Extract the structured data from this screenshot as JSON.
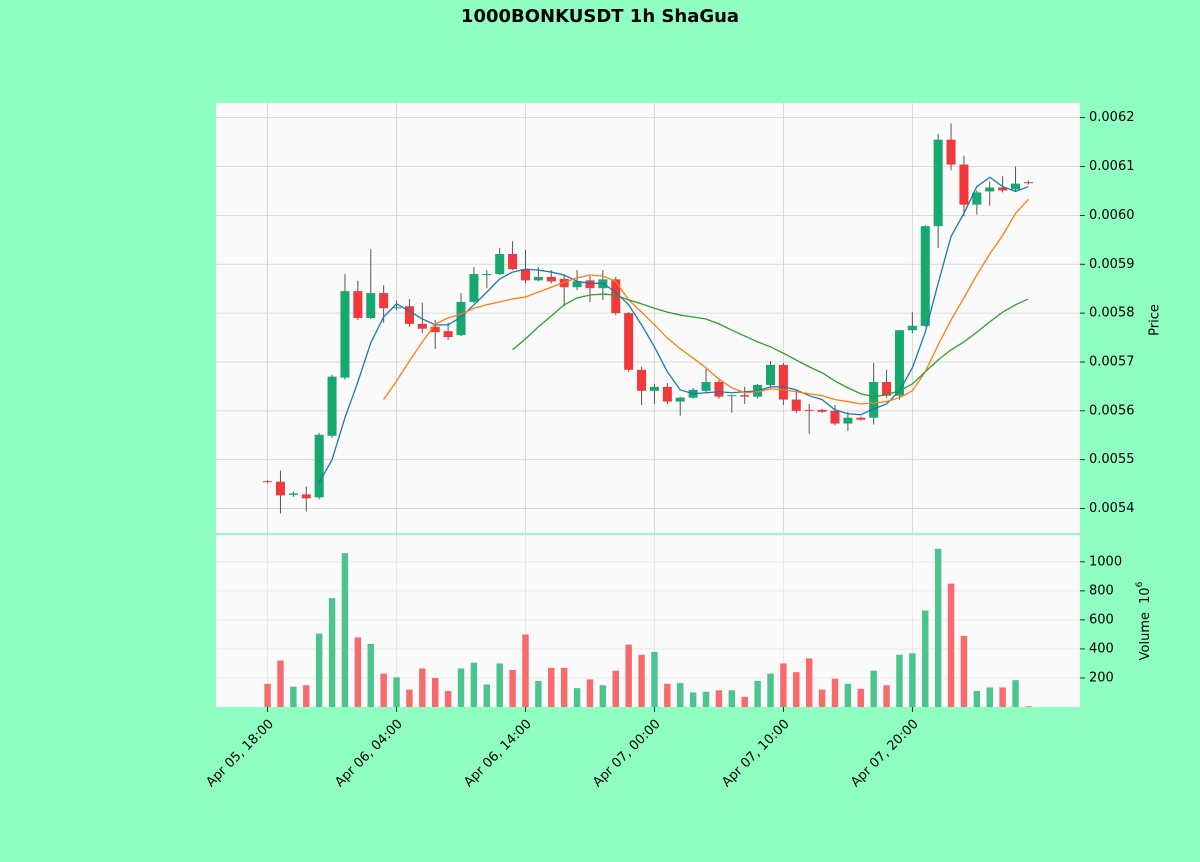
{
  "chart_data": {
    "type": "candlestick",
    "title": "1000BONKUSDT 1h ShaGua",
    "ylabel": "Price",
    "volume_label": "Volume",
    "volume_exponent_base": "10",
    "volume_exponent": "6",
    "up_color": "#16a86e",
    "down_color": "#f2383b",
    "volume_up_color": "#4cc490",
    "volume_down_color": "#f86b6d",
    "grid": true,
    "xlim": [
      -4,
      63
    ],
    "xticks": [
      {
        "value": 0,
        "label": "Apr 05, 18:00"
      },
      {
        "value": 10,
        "label": "Apr 06, 04:00"
      },
      {
        "value": 20,
        "label": "Apr 06, 14:00"
      },
      {
        "value": 30,
        "label": "Apr 07, 00:00"
      },
      {
        "value": 40,
        "label": "Apr 07, 10:00"
      },
      {
        "value": 50,
        "label": "Apr 07, 20:00"
      }
    ],
    "ylim": [
      0.00535,
      0.00623
    ],
    "yticks": [
      0.0054,
      0.0055,
      0.0056,
      0.0057,
      0.0058,
      0.0059,
      {
        "value": 0.006,
        "label": "0.0060"
      },
      0.0061,
      0.0062
    ],
    "volume_ylim": [
      0,
      1185
    ],
    "volume_yticks": [
      200,
      400,
      600,
      800,
      1000
    ],
    "open": [
      0.005456,
      0.005455,
      0.005428,
      0.005429,
      0.005423,
      0.005549,
      0.005668,
      0.005845,
      0.00579,
      0.005841,
      0.00581,
      0.005814,
      0.005778,
      0.005772,
      0.005763,
      0.005755,
      0.005823,
      0.005878,
      0.00588,
      0.005921,
      0.00589,
      0.005867,
      0.005874,
      0.00587,
      0.005853,
      0.005867,
      0.005851,
      0.005869,
      0.0058,
      0.005684,
      0.005641,
      0.005649,
      0.005619,
      0.005627,
      0.005641,
      0.005659,
      0.00563,
      0.005632,
      0.005629,
      0.005653,
      0.005694,
      0.005623,
      0.005602,
      0.005602,
      0.0056,
      0.005574,
      0.005586,
      0.005586,
      0.005659,
      0.005631,
      0.005765,
      0.005774,
      0.005978,
      0.006155,
      0.006104,
      0.006022,
      0.006049,
      0.006057,
      0.006053,
      0.006068
    ],
    "high": [
      0.005458,
      0.005478,
      0.005435,
      0.005445,
      0.005555,
      0.005674,
      0.00588,
      0.005866,
      0.005931,
      0.005857,
      0.005826,
      0.005829,
      0.005821,
      0.005786,
      0.00578,
      0.005841,
      0.005894,
      0.005888,
      0.005933,
      0.005947,
      0.005929,
      0.005894,
      0.005888,
      0.005878,
      0.005888,
      0.005876,
      0.005888,
      0.005874,
      0.005802,
      0.00569,
      0.005655,
      0.005657,
      0.005629,
      0.005647,
      0.005686,
      0.005663,
      0.005633,
      0.005649,
      0.005655,
      0.005702,
      0.005698,
      0.005643,
      0.005614,
      0.005604,
      0.005612,
      0.005598,
      0.005588,
      0.005698,
      0.005684,
      0.005765,
      0.005802,
      0.00598,
      0.006167,
      0.006188,
      0.006122,
      0.006051,
      0.006069,
      0.00608,
      0.0061,
      0.006071
    ],
    "low": [
      0.005452,
      0.00539,
      0.005424,
      0.005394,
      0.005419,
      0.005545,
      0.005664,
      0.005786,
      0.005788,
      0.00578,
      0.005806,
      0.005772,
      0.005759,
      0.005727,
      0.005745,
      0.005753,
      0.005821,
      0.005851,
      0.005878,
      0.005888,
      0.005861,
      0.005865,
      0.005861,
      0.005814,
      0.005847,
      0.005823,
      0.005827,
      0.005796,
      0.00568,
      0.005612,
      0.005614,
      0.005614,
      0.00559,
      0.005625,
      0.005637,
      0.005625,
      0.005596,
      0.005614,
      0.005625,
      0.005647,
      0.005612,
      0.005596,
      0.005553,
      0.005596,
      0.00557,
      0.005559,
      0.00558,
      0.005572,
      0.005627,
      0.005623,
      0.005759,
      0.005772,
      0.005933,
      0.006092,
      0.005998,
      0.006002,
      0.00602,
      0.006047,
      0.006049,
      0.006063
    ],
    "close": [
      0.005454,
      0.005427,
      0.005431,
      0.005421,
      0.005551,
      0.00567,
      0.005845,
      0.00579,
      0.005841,
      0.00581,
      0.005812,
      0.005778,
      0.005768,
      0.005761,
      0.005751,
      0.005823,
      0.00588,
      0.00588,
      0.005921,
      0.00589,
      0.005867,
      0.005874,
      0.005865,
      0.005853,
      0.005865,
      0.005851,
      0.005869,
      0.0058,
      0.005684,
      0.005641,
      0.005649,
      0.005619,
      0.005627,
      0.005643,
      0.005659,
      0.005629,
      0.005632,
      0.005629,
      0.005653,
      0.005694,
      0.005623,
      0.0056,
      0.0056,
      0.005598,
      0.005574,
      0.005586,
      0.005582,
      0.005659,
      0.005631,
      0.005765,
      0.005774,
      0.005978,
      0.006155,
      0.006104,
      0.006022,
      0.006047,
      0.006057,
      0.006051,
      0.006065,
      0.006066
    ],
    "volume": [
      160,
      320,
      140,
      150,
      505,
      750,
      1060,
      480,
      435,
      230,
      205,
      120,
      265,
      200,
      110,
      265,
      305,
      155,
      300,
      255,
      500,
      180,
      270,
      270,
      130,
      190,
      150,
      250,
      430,
      360,
      380,
      160,
      165,
      100,
      105,
      115,
      115,
      70,
      180,
      230,
      300,
      240,
      335,
      120,
      195,
      160,
      125,
      250,
      150,
      360,
      370,
      665,
      1090,
      850,
      490,
      110,
      135,
      135,
      185,
      5
    ],
    "moving_averages": [
      {
        "color": "#1f77b4",
        "values": [
          null,
          null,
          null,
          null,
          0.005453,
          0.0055,
          0.005586,
          0.005659,
          0.005739,
          0.005792,
          0.005819,
          0.005804,
          0.005788,
          0.005776,
          0.005776,
          0.005792,
          0.005817,
          0.005843,
          0.00587,
          0.005884,
          0.00589,
          0.005888,
          0.005884,
          0.005878,
          0.005865,
          0.005861,
          0.005861,
          0.005843,
          0.005817,
          0.005776,
          0.005731,
          0.00568,
          0.005643,
          0.005635,
          0.005637,
          0.005639,
          0.005637,
          0.005639,
          0.005641,
          0.005649,
          0.005649,
          0.005643,
          0.005631,
          0.005623,
          0.005602,
          0.005594,
          0.005592,
          0.005604,
          0.005614,
          0.005641,
          0.005688,
          0.005761,
          0.005861,
          0.005957,
          0.006004,
          0.006059,
          0.006078,
          0.006059,
          0.006049,
          0.006059
        ]
      },
      {
        "color": "#ff7f0e",
        "values": [
          null,
          null,
          null,
          null,
          null,
          null,
          null,
          null,
          null,
          0.005623,
          0.005661,
          0.005702,
          0.005741,
          0.005778,
          0.00579,
          0.005798,
          0.00581,
          0.005817,
          0.005823,
          0.005829,
          0.005833,
          0.005843,
          0.005853,
          0.005863,
          0.005872,
          0.005878,
          0.005876,
          0.005865,
          0.005827,
          0.005802,
          0.005776,
          0.005749,
          0.005727,
          0.005708,
          0.005688,
          0.005665,
          0.005647,
          0.005637,
          0.005639,
          0.005645,
          0.005643,
          0.005639,
          0.005635,
          0.005631,
          0.005623,
          0.005619,
          0.005614,
          0.005616,
          0.005619,
          0.005627,
          0.005641,
          0.00568,
          0.005735,
          0.005786,
          0.005831,
          0.005878,
          0.005921,
          0.005959,
          0.006004,
          0.006033
        ]
      },
      {
        "color": "#2ca02c",
        "values": [
          null,
          null,
          null,
          null,
          null,
          null,
          null,
          null,
          null,
          null,
          null,
          null,
          null,
          null,
          null,
          null,
          null,
          null,
          null,
          0.005725,
          0.005747,
          0.005772,
          0.005794,
          0.005817,
          0.005831,
          0.005837,
          0.005839,
          0.005837,
          0.005827,
          0.005819,
          0.00581,
          0.005802,
          0.005796,
          0.005792,
          0.005788,
          0.005778,
          0.005765,
          0.005753,
          0.005741,
          0.005731,
          0.005718,
          0.005704,
          0.00569,
          0.005678,
          0.005661,
          0.005647,
          0.005635,
          0.005629,
          0.005633,
          0.005641,
          0.005655,
          0.00568,
          0.005704,
          0.005725,
          0.005741,
          0.005761,
          0.005782,
          0.005802,
          0.005817,
          0.005829
        ]
      }
    ]
  }
}
